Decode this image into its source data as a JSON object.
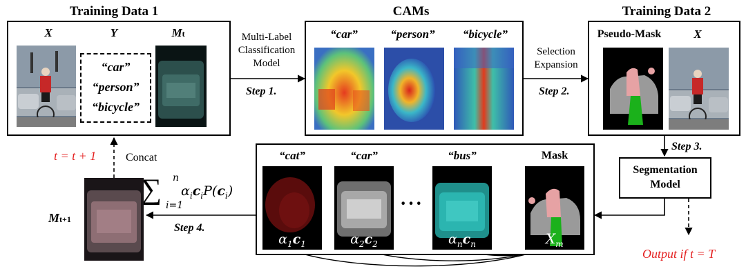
{
  "training_data_1": {
    "title": "Training Data 1",
    "x_label": "X",
    "y_label": "Y",
    "m_label_main": "M",
    "m_label_sub": "t",
    "labels": [
      "“car”",
      "“person”",
      "“bicycle”"
    ]
  },
  "cams": {
    "title": "CAMs",
    "labels": [
      "“car”",
      "“person”",
      "“bicycle”"
    ]
  },
  "training_data_2": {
    "title": "Training Data 2",
    "pseudo_mask_label": "Pseudo-Mask",
    "x_label": "X"
  },
  "classification": {
    "lines": [
      "Multi-Label",
      "Classification",
      "Model"
    ],
    "step": "Step 1."
  },
  "selection": {
    "lines": [
      "Selection",
      "Expansion"
    ],
    "step": "Step 2."
  },
  "segmentation": {
    "lines": [
      "Segmentation",
      "Model"
    ],
    "step": "Step 3."
  },
  "class_masks": {
    "labels": [
      "“cat”",
      "“car”",
      "“bus”",
      "Mask"
    ],
    "ellipsis": "···",
    "coeffs": [
      {
        "alpha": "α",
        "sub": "1",
        "c": "c",
        "csub": "1"
      },
      {
        "alpha": "α",
        "sub": "2",
        "c": "c",
        "csub": "2"
      },
      {
        "alpha": "α",
        "sub": "n",
        "c": "c",
        "csub": "n"
      }
    ],
    "mask_x": "X",
    "mask_x_sub": "m"
  },
  "aggregation": {
    "sum": "∑",
    "sum_upper": "n",
    "sum_lower": "i=1",
    "term_alpha": "α",
    "term_alpha_sub": "i",
    "term_c": "c",
    "term_c_sub": "i",
    "term_p": "P(",
    "term_p_c": "c",
    "term_p_sub": "i",
    "term_p_close": ")"
  },
  "concat_label": "Concat",
  "update_label": "t = t + 1",
  "m_next_main": "M",
  "m_next_sub": "t+1",
  "step4": "Step 4.",
  "output_label": "Output if  t = T",
  "colors": {
    "red": "#e41f1f",
    "teal": "#2bb5b0",
    "mask_pink": "#e6a2a4",
    "mask_green": "#1bb11b"
  }
}
